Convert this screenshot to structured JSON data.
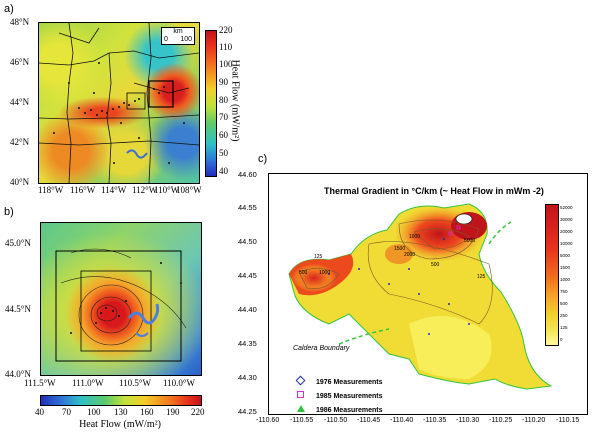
{
  "panels": {
    "a": {
      "label": "a)",
      "lat_ticks": [
        "48°N",
        "46°N",
        "44°N",
        "42°N",
        "40°N"
      ],
      "lon_ticks": [
        "118°W",
        "116°W",
        "114°W",
        "112°W",
        "110°W",
        "108°W"
      ],
      "scale_bar": {
        "unit": "km",
        "values": [
          "0",
          "100"
        ]
      },
      "colorbar": {
        "ticks": [
          "220",
          "110",
          "100",
          "90",
          "80",
          "70",
          "60",
          "50",
          "40"
        ],
        "label": "Heat Flow (mW/m²)"
      }
    },
    "b": {
      "label": "b)",
      "lat_ticks": [
        "45.0°N",
        "44.5°N",
        "44.0°N"
      ],
      "lon_ticks": [
        "111.5°W",
        "111.0°W",
        "110.5°W",
        "110.0°W"
      ],
      "colorbar": {
        "ticks": [
          "40",
          "70",
          "100",
          "130",
          "160",
          "190",
          "220"
        ],
        "label": "Heat Flow (mW/m²)"
      }
    },
    "c": {
      "label": "c)",
      "title": "Thermal Gradient in °C/km (~ Heat Flow in mWm -2)",
      "y_ticks": [
        "44.60",
        "44.55",
        "44.50",
        "44.45",
        "44.40",
        "44.35",
        "44.30",
        "44.25"
      ],
      "x_ticks": [
        "-110.60",
        "-110.55",
        "-110.50",
        "-110.45",
        "-110.40",
        "-110.35",
        "-110.30",
        "-110.25",
        "-110.20",
        "-110.15"
      ],
      "colorbar_ticks": [
        "52000",
        "30000",
        "20000",
        "10000",
        "5000",
        "1500",
        "1000",
        "750",
        "500",
        "250",
        "125",
        "0"
      ],
      "contour_labels": [
        "125",
        "125",
        "500",
        "500",
        "1000",
        "1000",
        "1500",
        "5000",
        "2000"
      ],
      "annotation": "Caldera Boundary",
      "legend": [
        {
          "label": "1976 Measurements",
          "color": "#1f2fb8",
          "marker": "diamond"
        },
        {
          "label": "1985 Measurements",
          "color": "#d62fd0",
          "marker": "square"
        },
        {
          "label": "1986 Measurements",
          "color": "#2fc23a",
          "marker": "triangle"
        }
      ]
    }
  }
}
